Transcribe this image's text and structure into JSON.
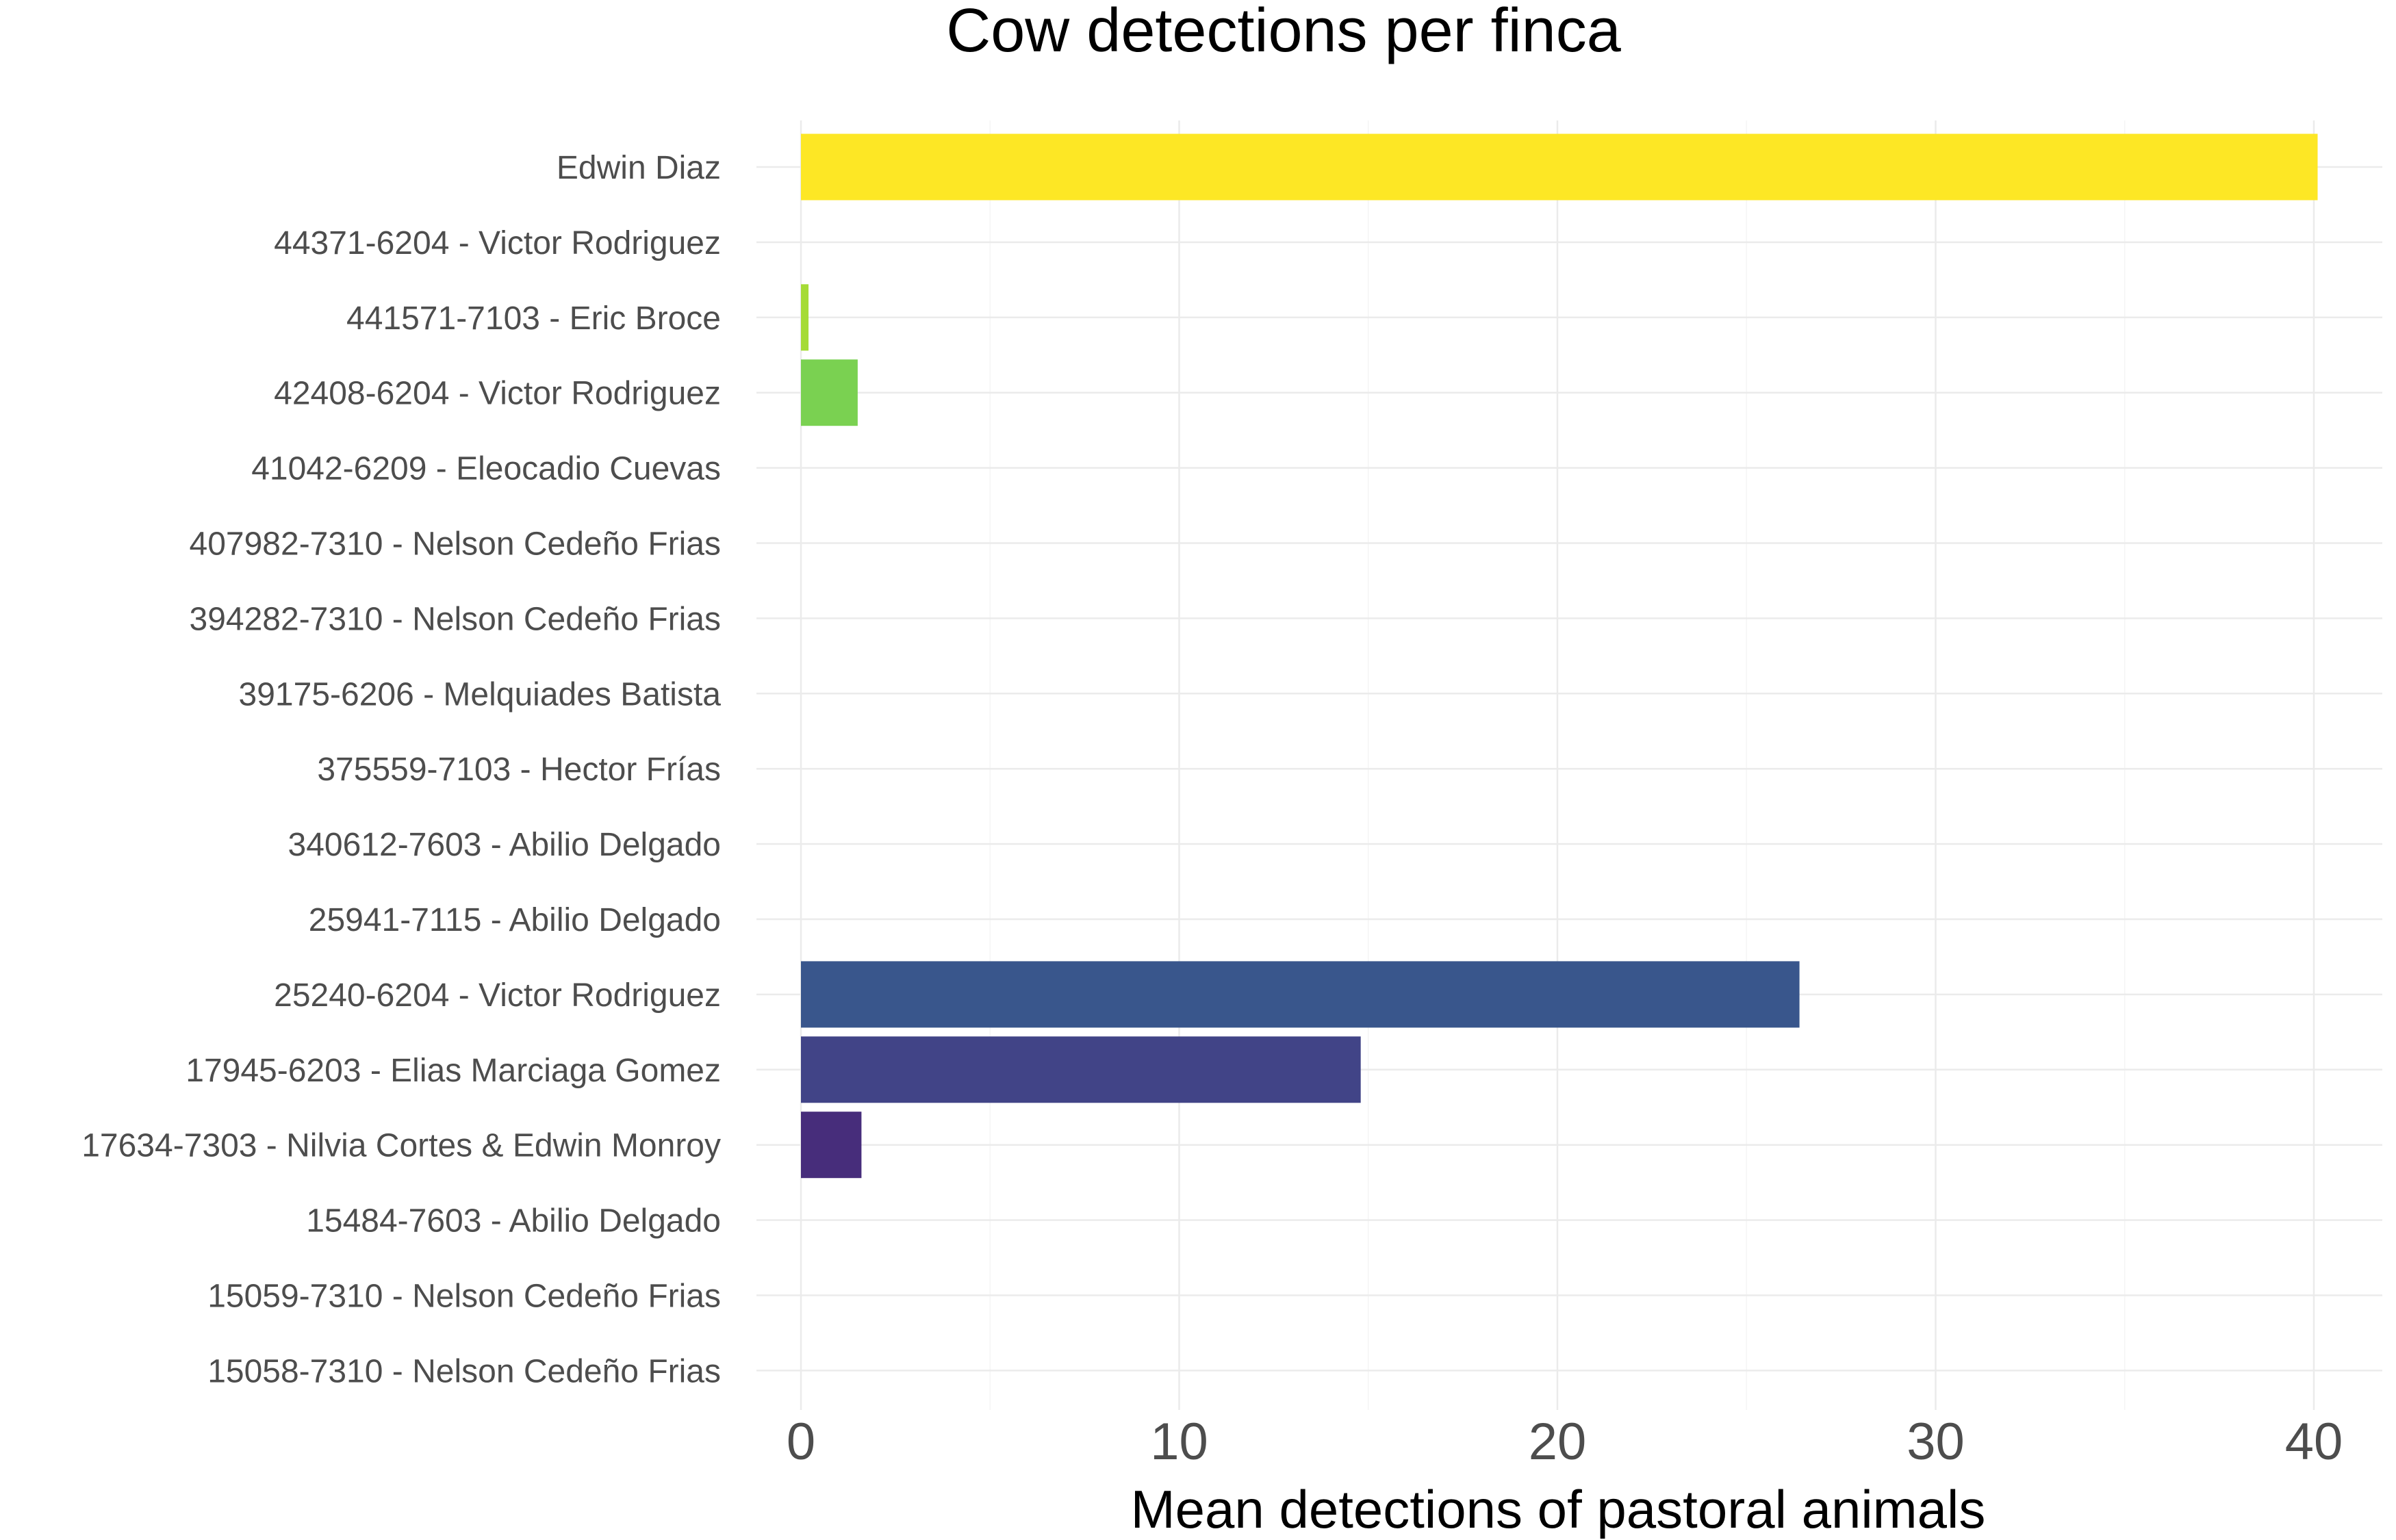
{
  "chart_data": {
    "type": "bar",
    "orientation": "horizontal",
    "title": "Cow detections per finca",
    "xlabel": "Mean detections of pastoral animals",
    "ylabel": "",
    "xlim": [
      0,
      41
    ],
    "x_ticks": [
      0,
      10,
      20,
      30,
      40
    ],
    "grid": true,
    "legend": "none",
    "categories": [
      "Edwin Diaz",
      "44371-6204 - Victor Rodriguez",
      "441571-7103 - Eric Broce",
      "42408-6204 - Victor Rodriguez",
      "41042-6209 - Eleocadio Cuevas",
      "407982-7310 - Nelson Cedeño Frias",
      "394282-7310 - Nelson Cedeño Frias",
      "39175-6206 - Melquiades Batista",
      "375559-7103 - Hector Frías",
      "340612-7603 - Abilio Delgado",
      "25941-7115 - Abilio Delgado",
      "25240-6204 - Victor Rodriguez",
      "17945-6203 - Elias Marciaga Gomez",
      "17634-7303 - Nilvia Cortes & Edwin Monroy",
      "15484-7603 - Abilio Delgado",
      "15059-7310 - Nelson Cedeño Frias",
      "15058-7310 - Nelson Cedeño Frias"
    ],
    "values": [
      40.1,
      0,
      0.2,
      1.5,
      0,
      0,
      0,
      0,
      0,
      0,
      0,
      26.4,
      14.8,
      1.6,
      0,
      0,
      0
    ],
    "colors": [
      "#FDE725",
      "#D2E21B",
      "#A5DB36",
      "#7AD151",
      "#54C568",
      "#35B779",
      "#22A884",
      "#1F988B",
      "#23888E",
      "#2A788E",
      "#31688E",
      "#39568C",
      "#414487",
      "#472D7B",
      "#481A6C",
      "#440154",
      "#440154"
    ]
  }
}
